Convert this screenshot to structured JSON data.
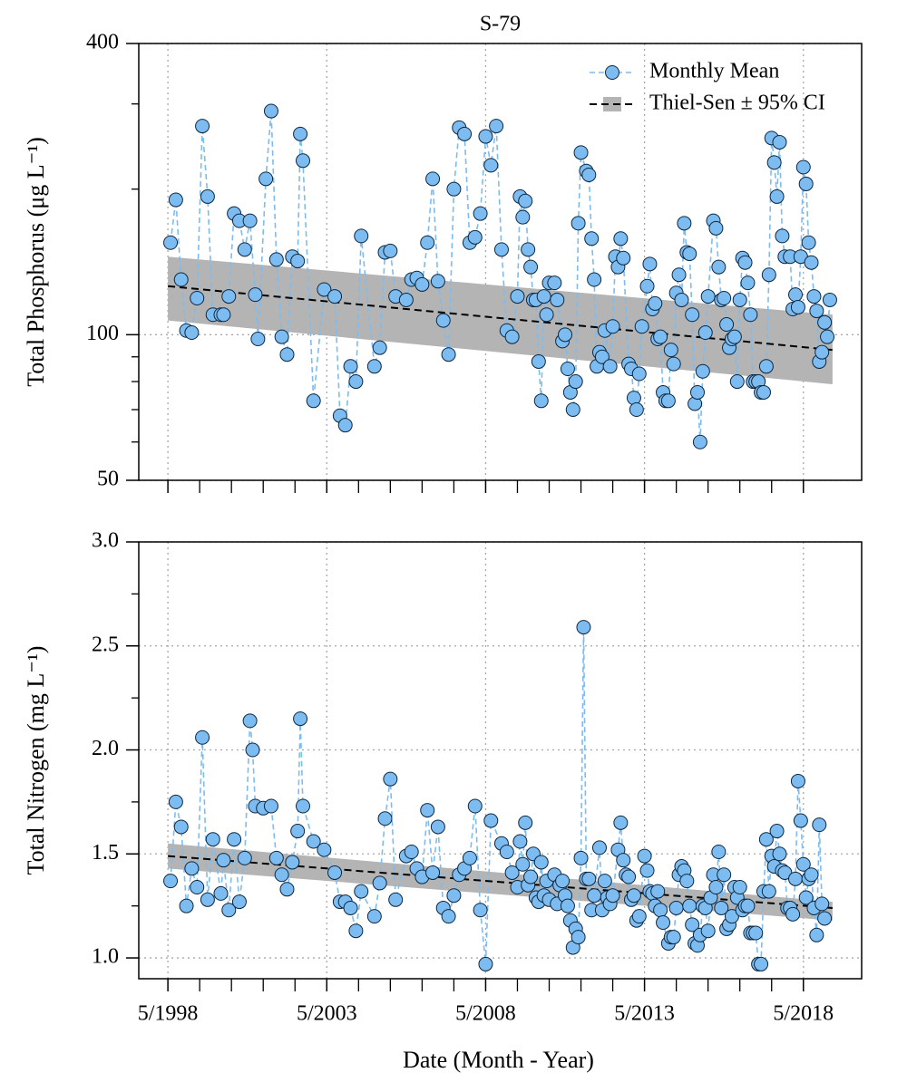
{
  "chart_data": [
    {
      "type": "line",
      "title": "S-79",
      "ylabel": "Total Phosphorus (μg L⁻¹)",
      "log_y": true,
      "xlim": [
        "1997-06",
        "2020-03"
      ],
      "xticks": [
        "1998-05",
        "2003-05",
        "2008-05",
        "2013-05",
        "2018-05"
      ],
      "xminorticks": [
        "1999-05",
        "2000-05",
        "2001-05",
        "2002-05",
        "2004-05",
        "2005-05",
        "2006-05",
        "2007-05",
        "2009-05",
        "2010-05",
        "2011-05",
        "2012-05",
        "2014-05",
        "2015-05",
        "2016-05",
        "2017-05"
      ],
      "ylim": [
        50,
        400
      ],
      "yticks": [
        50,
        100,
        400
      ],
      "yminorticks": [
        60,
        70,
        80,
        90,
        200,
        300
      ],
      "grid": true,
      "legend": "upper right",
      "x": [
        "1998-06",
        "1998-08",
        "1998-10",
        "1998-12",
        "1999-02",
        "1999-04",
        "1999-06",
        "1999-08",
        "1999-10",
        "2000-01",
        "2000-02",
        "2000-04",
        "2000-06",
        "2000-08",
        "2000-10",
        "2000-12",
        "2001-02",
        "2001-03",
        "2001-06",
        "2001-08",
        "2001-10",
        "2001-12",
        "2002-02",
        "2002-04",
        "2002-06",
        "2002-07",
        "2002-08",
        "2002-12",
        "2003-04",
        "2003-08",
        "2003-10",
        "2003-12",
        "2004-02",
        "2004-04",
        "2004-06",
        "2004-11",
        "2005-01",
        "2005-03",
        "2005-05",
        "2005-07",
        "2005-11",
        "2006-01",
        "2006-03",
        "2006-05",
        "2006-07",
        "2006-09",
        "2006-11",
        "2007-01",
        "2007-03",
        "2007-05",
        "2007-07",
        "2007-09",
        "2007-11",
        "2008-01",
        "2008-03",
        "2008-05",
        "2008-07",
        "2008-09",
        "2008-11",
        "2009-01",
        "2009-03",
        "2009-05",
        "2009-06",
        "2009-07",
        "2009-08",
        "2009-09",
        "2009-10",
        "2009-11",
        "2009-12",
        "2010-01",
        "2010-02",
        "2010-03",
        "2010-04",
        "2010-05",
        "2010-07",
        "2010-08",
        "2010-10",
        "2010-11",
        "2010-12",
        "2011-01",
        "2011-02",
        "2011-03",
        "2011-04",
        "2011-05",
        "2011-07",
        "2011-08",
        "2011-09",
        "2011-10",
        "2011-11",
        "2011-12",
        "2012-01",
        "2012-02",
        "2012-04",
        "2012-05",
        "2012-06",
        "2012-07",
        "2012-08",
        "2012-09",
        "2012-11",
        "2012-12",
        "2013-01",
        "2013-02",
        "2013-03",
        "2013-04",
        "2013-06",
        "2013-07",
        "2013-08",
        "2013-09",
        "2013-10",
        "2013-11",
        "2013-12",
        "2014-01",
        "2014-02",
        "2014-03",
        "2014-04",
        "2014-05",
        "2014-06",
        "2014-07",
        "2014-08",
        "2014-09",
        "2014-10",
        "2014-11",
        "2014-12",
        "2015-01",
        "2015-02",
        "2015-03",
        "2015-04",
        "2015-05",
        "2015-07",
        "2015-08",
        "2015-09",
        "2015-10",
        "2015-11",
        "2015-12",
        "2016-01",
        "2016-02",
        "2016-03",
        "2016-04",
        "2016-05",
        "2016-06",
        "2016-07",
        "2016-08",
        "2016-09",
        "2016-10",
        "2016-11",
        "2016-12",
        "2017-01",
        "2017-02",
        "2017-03",
        "2017-04",
        "2017-05",
        "2017-06",
        "2017-07",
        "2017-08",
        "2017-09",
        "2017-10",
        "2017-12",
        "2018-01",
        "2018-02",
        "2018-03",
        "2018-04",
        "2018-05",
        "2018-06",
        "2018-07",
        "2018-08",
        "2018-09",
        "2018-10",
        "2018-11",
        "2018-12",
        "2019-01",
        "2019-02",
        "2019-03"
      ],
      "series": [
        {
          "name": "Monthly Mean",
          "color": "#7dbcf0",
          "edge_color": "#0d2740",
          "values": [
            155,
            190,
            130,
            102,
            101,
            119,
            270,
            193,
            110,
            110,
            110,
            120,
            178,
            172,
            150,
            172,
            121,
            98,
            210,
            290,
            143,
            99,
            91,
            145,
            142,
            260,
            229,
            73,
            124,
            120,
            68,
            65,
            86,
            80,
            160,
            86,
            94,
            148,
            149,
            120,
            118,
            130,
            131,
            127,
            155,
            210,
            129,
            107,
            91,
            200,
            268,
            260,
            155,
            159,
            178,
            257,
            224,
            270,
            150,
            102,
            99,
            120,
            193,
            175,
            189,
            150,
            138,
            118,
            118,
            88,
            73,
            120,
            110,
            128,
            128,
            118,
            97,
            100,
            85,
            76,
            70,
            80,
            170,
            238,
            218,
            214,
            158,
            130,
            86,
            92,
            90,
            102,
            86,
            104,
            145,
            138,
            158,
            144,
            87,
            85,
            74,
            70,
            83,
            104,
            126,
            140,
            113,
            116,
            98,
            99,
            76,
            73,
            73,
            93,
            87,
            122,
            133,
            118,
            170,
            148,
            147,
            110,
            72,
            76,
            60,
            84,
            101,
            120,
            172,
            166,
            138,
            118,
            119,
            105,
            94,
            98,
            99,
            80,
            118,
            144,
            141,
            128,
            110,
            80,
            80,
            80,
            76,
            76,
            86,
            133,
            255,
            227,
            193,
            250,
            160,
            145,
            145,
            113,
            121,
            114,
            145,
            222,
            205,
            155,
            141,
            120,
            112,
            88,
            92,
            106,
            99,
            118
          ]
        }
      ],
      "trend": {
        "name": "Thiel-Sen ± 95% CI",
        "color": "#000000",
        "band_color": "#b4b4b4",
        "x": [
          "1998-05",
          "2019-04"
        ],
        "values": [
          126,
          93
        ],
        "ci_lower": [
          107,
          79
        ],
        "ci_upper": [
          145,
          110
        ]
      }
    },
    {
      "type": "line",
      "ylabel": "Total Nitrogen (mg L⁻¹)",
      "xlabel": "Date (Month - Year)",
      "log_y": false,
      "xlim": [
        "1997-06",
        "2020-03"
      ],
      "xticks": [
        {
          "value": "1998-05",
          "label": "5/1998"
        },
        {
          "value": "2003-05",
          "label": "5/2003"
        },
        {
          "value": "2008-05",
          "label": "5/2008"
        },
        {
          "value": "2013-05",
          "label": "5/2013"
        },
        {
          "value": "2018-05",
          "label": "5/2018"
        }
      ],
      "xminorticks": [
        "1999-05",
        "2000-05",
        "2001-05",
        "2002-05",
        "2004-05",
        "2005-05",
        "2006-05",
        "2007-05",
        "2009-05",
        "2010-05",
        "2011-05",
        "2012-05",
        "2014-05",
        "2015-05",
        "2016-05",
        "2017-05"
      ],
      "ylim": [
        0.9,
        3.0
      ],
      "yticks": [
        {
          "value": 1,
          "label": "1.0"
        },
        1.5,
        {
          "value": 2,
          "label": "2.0"
        },
        2.5,
        {
          "value": 3,
          "label": "3.0"
        }
      ],
      "yminorticks": [
        1.25,
        1.75,
        2.25,
        2.75
      ],
      "grid": true,
      "x": [
        "1998-06",
        "1998-08",
        "1998-10",
        "1998-12",
        "1999-02",
        "1999-04",
        "1999-06",
        "1999-08",
        "1999-10",
        "2000-01",
        "2000-02",
        "2000-04",
        "2000-06",
        "2000-08",
        "2000-10",
        "2000-12",
        "2001-01",
        "2001-02",
        "2001-05",
        "2001-08",
        "2001-10",
        "2001-12",
        "2002-02",
        "2002-04",
        "2002-06",
        "2002-07",
        "2002-08",
        "2002-12",
        "2003-04",
        "2003-08",
        "2003-10",
        "2003-12",
        "2004-02",
        "2004-04",
        "2004-06",
        "2004-11",
        "2005-01",
        "2005-03",
        "2005-05",
        "2005-07",
        "2005-11",
        "2006-01",
        "2006-03",
        "2006-05",
        "2006-07",
        "2006-09",
        "2006-11",
        "2007-01",
        "2007-03",
        "2007-05",
        "2007-07",
        "2007-09",
        "2007-11",
        "2008-01",
        "2008-03",
        "2008-05",
        "2008-07",
        "2008-11",
        "2009-01",
        "2009-03",
        "2009-05",
        "2009-06",
        "2009-07",
        "2009-08",
        "2009-09",
        "2009-10",
        "2009-11",
        "2009-12",
        "2010-01",
        "2010-02",
        "2010-03",
        "2010-04",
        "2010-05",
        "2010-07",
        "2010-08",
        "2010-09",
        "2010-10",
        "2010-11",
        "2010-12",
        "2011-01",
        "2011-02",
        "2011-03",
        "2011-04",
        "2011-05",
        "2011-06",
        "2011-07",
        "2011-08",
        "2011-09",
        "2011-10",
        "2011-12",
        "2012-01",
        "2012-02",
        "2012-03",
        "2012-04",
        "2012-05",
        "2012-07",
        "2012-08",
        "2012-09",
        "2012-10",
        "2012-11",
        "2012-12",
        "2013-01",
        "2013-02",
        "2013-03",
        "2013-05",
        "2013-06",
        "2013-07",
        "2013-08",
        "2013-09",
        "2013-10",
        "2013-11",
        "2013-12",
        "2014-02",
        "2014-03",
        "2014-04",
        "2014-05",
        "2014-06",
        "2014-07",
        "2014-08",
        "2014-09",
        "2014-10",
        "2014-11",
        "2014-12",
        "2015-01",
        "2015-02",
        "2015-03",
        "2015-04",
        "2015-05",
        "2015-06",
        "2015-07",
        "2015-08",
        "2015-09",
        "2015-10",
        "2015-11",
        "2015-12",
        "2016-01",
        "2016-02",
        "2016-03",
        "2016-04",
        "2016-05",
        "2016-06",
        "2016-07",
        "2016-08",
        "2016-09",
        "2016-10",
        "2016-11",
        "2016-12",
        "2017-01",
        "2017-02",
        "2017-03",
        "2017-04",
        "2017-05",
        "2017-06",
        "2017-07",
        "2017-08",
        "2017-09",
        "2017-10",
        "2017-11",
        "2017-12",
        "2018-01",
        "2018-02",
        "2018-03",
        "2018-04",
        "2018-05",
        "2018-06",
        "2018-07",
        "2018-08",
        "2018-09",
        "2018-10",
        "2018-11",
        "2018-12",
        "2019-01"
      ],
      "series": [
        {
          "color": "#7dbcf0",
          "edge_color": "#0d2740",
          "values": [
            1.37,
            1.75,
            1.63,
            1.25,
            1.43,
            1.34,
            2.06,
            1.28,
            1.57,
            1.31,
            1.47,
            1.23,
            1.57,
            1.27,
            1.48,
            2.14,
            2.0,
            1.73,
            1.72,
            1.73,
            1.48,
            1.4,
            1.33,
            1.46,
            1.61,
            2.15,
            1.73,
            1.56,
            1.52,
            1.41,
            1.27,
            1.27,
            1.24,
            1.13,
            1.32,
            1.2,
            1.36,
            1.67,
            1.86,
            1.28,
            1.49,
            1.51,
            1.43,
            1.39,
            1.71,
            1.41,
            1.63,
            1.24,
            1.2,
            1.3,
            1.4,
            1.43,
            1.48,
            1.73,
            1.23,
            0.97,
            1.66,
            1.55,
            1.51,
            1.41,
            1.34,
            1.56,
            1.45,
            1.65,
            1.35,
            1.39,
            1.5,
            1.29,
            1.27,
            1.46,
            1.3,
            1.37,
            1.28,
            1.4,
            1.26,
            1.35,
            1.37,
            1.3,
            1.25,
            1.18,
            1.05,
            1.14,
            1.1,
            1.48,
            2.59,
            1.38,
            1.38,
            1.23,
            1.3,
            1.53,
            1.23,
            1.37,
            1.29,
            1.26,
            1.3,
            1.52,
            1.65,
            1.47,
            1.4,
            1.39,
            1.28,
            1.3,
            1.18,
            1.2,
            1.49,
            1.42,
            1.32,
            1.31,
            1.25,
            1.32,
            1.23,
            1.17,
            1.07,
            1.1,
            1.1,
            1.24,
            1.4,
            1.44,
            1.42,
            1.37,
            1.25,
            1.16,
            1.07,
            1.06,
            1.11,
            1.25,
            1.24,
            1.13,
            1.29,
            1.4,
            1.34,
            1.51,
            1.24,
            1.4,
            1.14,
            1.16,
            1.2,
            1.34,
            1.29,
            1.34,
            1.23,
            1.25,
            1.25,
            1.12,
            1.12,
            1.12,
            0.97,
            0.97,
            1.32,
            1.57,
            1.32,
            1.49,
            1.44,
            1.61,
            1.5,
            1.42,
            1.41,
            1.24,
            1.24,
            1.21,
            1.38,
            1.85,
            1.66,
            1.45,
            1.29,
            1.38,
            1.4,
            1.24,
            1.11,
            1.64,
            1.26,
            1.19
          ]
        }
      ],
      "trend": {
        "color": "#000000",
        "band_color": "#b4b4b4",
        "x": [
          "1998-05",
          "2019-04"
        ],
        "values": [
          1.49,
          1.24
        ],
        "ci_lower": [
          1.43,
          1.18
        ],
        "ci_upper": [
          1.55,
          1.27
        ]
      }
    }
  ]
}
